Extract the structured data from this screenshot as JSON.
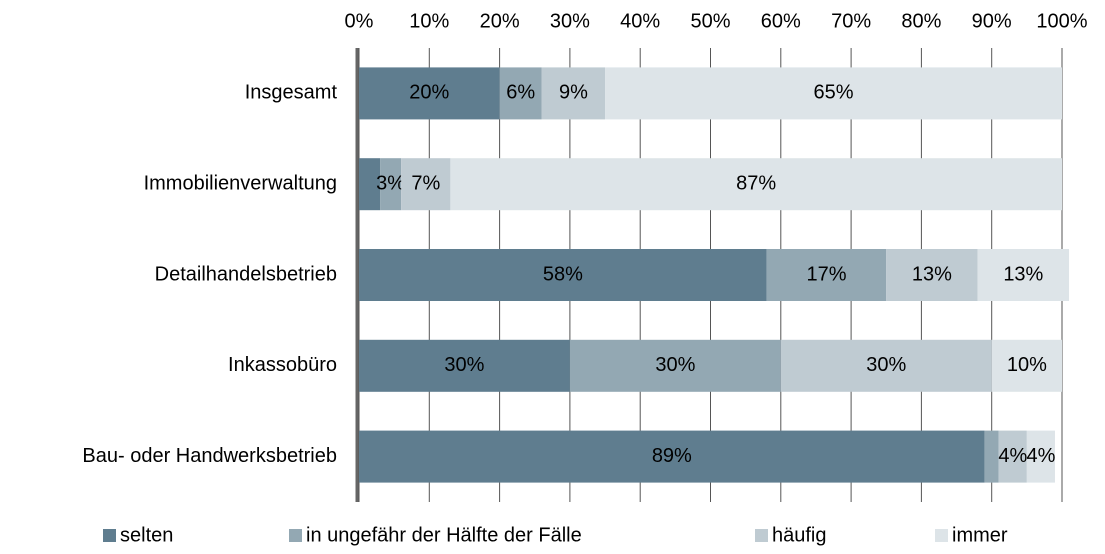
{
  "chart_data": {
    "type": "stacked_barh",
    "categories": [
      "Insgesamt",
      "Immobilienverwaltung",
      "Detailhandelsbetrieb",
      "Inkassobüro",
      "Bau- oder Handwerksbetrieb"
    ],
    "series": [
      {
        "name": "selten",
        "color": "#5f7d8f",
        "values": [
          20,
          3,
          58,
          30,
          89
        ],
        "value_labels": [
          "20%",
          null,
          "58%",
          "30%",
          "89%"
        ]
      },
      {
        "name": "in ungefähr der Hälfte der Fälle",
        "color": "#93a8b3",
        "values": [
          6,
          3,
          17,
          30,
          2
        ],
        "value_labels": [
          "6%",
          "3%",
          "17%",
          "30%",
          null
        ]
      },
      {
        "name": "häufig",
        "color": "#bfcbd2",
        "values": [
          9,
          7,
          13,
          30,
          4
        ],
        "value_labels": [
          "9%",
          "7%",
          "13%",
          "30%",
          "4%"
        ]
      },
      {
        "name": "immer",
        "color": "#dde4e8",
        "values": [
          65,
          87,
          13,
          10,
          4
        ],
        "value_labels": [
          "65%",
          "87%",
          "13%",
          "10%",
          "4%"
        ]
      }
    ],
    "xlim": [
      0,
      100
    ],
    "xticks": [
      {
        "value": 0,
        "label": "0%"
      },
      {
        "value": 10,
        "label": "10%"
      },
      {
        "value": 20,
        "label": "20%"
      },
      {
        "value": 30,
        "label": "30%"
      },
      {
        "value": 40,
        "label": "40%"
      },
      {
        "value": 50,
        "label": "50%"
      },
      {
        "value": 60,
        "label": "60%"
      },
      {
        "value": 70,
        "label": "70%"
      },
      {
        "value": 80,
        "label": "80%"
      },
      {
        "value": 90,
        "label": "90%"
      },
      {
        "value": 100,
        "label": "100%"
      }
    ],
    "grid": true,
    "legend": "bottom"
  }
}
